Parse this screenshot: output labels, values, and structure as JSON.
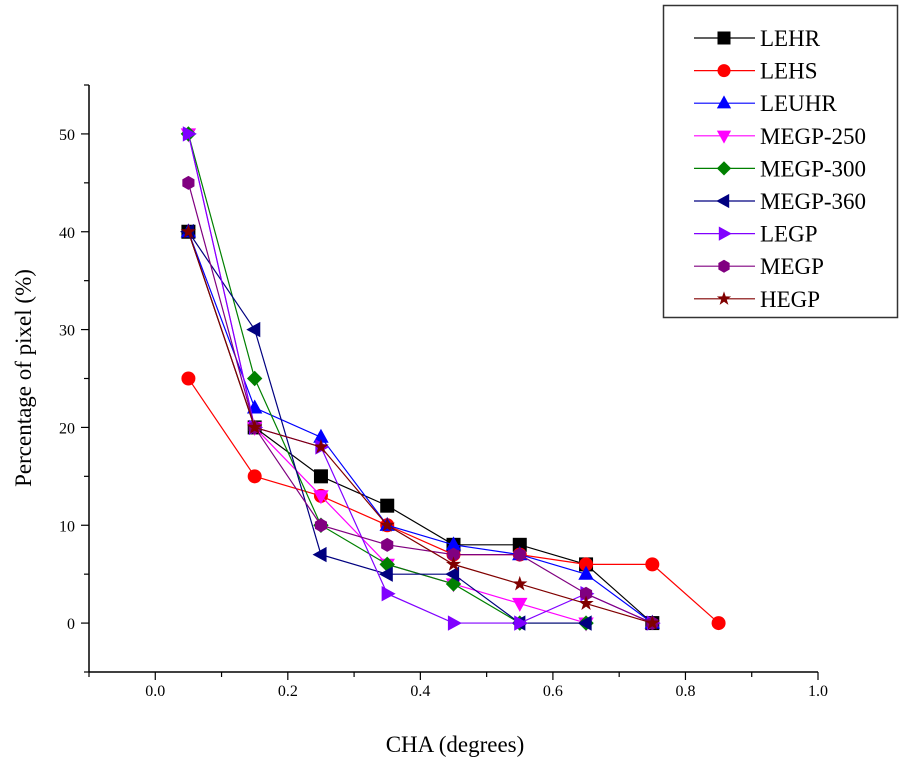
{
  "chart_data": {
    "type": "line",
    "title": "",
    "xlabel": "CHA (degrees)",
    "ylabel": "Percentage of pixel (%)",
    "xlim": [
      -0.1,
      1.0
    ],
    "ylim": [
      -5,
      55
    ],
    "xticks": [
      "0.0",
      "0.2",
      "0.4",
      "0.6",
      "0.8",
      "1.0"
    ],
    "yticks": [
      "0",
      "10",
      "20",
      "30",
      "40",
      "50"
    ],
    "grid": false,
    "legend_position": "top-right",
    "series": [
      {
        "name": "LEHR",
        "color": "#000000",
        "marker": "square",
        "x": [
          0.05,
          0.15,
          0.25,
          0.35,
          0.45,
          0.55,
          0.65,
          0.75
        ],
        "y": [
          40,
          20,
          15,
          12,
          8,
          8,
          6,
          0
        ]
      },
      {
        "name": "LEHS",
        "color": "#ff0000",
        "marker": "circle",
        "x": [
          0.05,
          0.15,
          0.25,
          0.35,
          0.45,
          0.55,
          0.65,
          0.75,
          0.85
        ],
        "y": [
          25,
          15,
          13,
          10,
          7,
          7,
          6,
          6,
          0
        ]
      },
      {
        "name": "LEUHR",
        "color": "#0000ff",
        "marker": "triangle-up",
        "x": [
          0.05,
          0.15,
          0.25,
          0.35,
          0.45,
          0.55,
          0.65,
          0.75
        ],
        "y": [
          40,
          22,
          19,
          10,
          8,
          7,
          5,
          0
        ]
      },
      {
        "name": "MEGP-250",
        "color": "#ff00ff",
        "marker": "triangle-down",
        "x": [
          0.05,
          0.15,
          0.25,
          0.35,
          0.45,
          0.55,
          0.65
        ],
        "y": [
          50,
          20,
          13,
          6,
          4,
          2,
          0
        ]
      },
      {
        "name": "MEGP-300",
        "color": "#008000",
        "marker": "diamond",
        "x": [
          0.05,
          0.15,
          0.25,
          0.35,
          0.45,
          0.55,
          0.65
        ],
        "y": [
          50,
          25,
          10,
          6,
          4,
          0,
          0
        ]
      },
      {
        "name": "MEGP-360",
        "color": "#000080",
        "marker": "triangle-left",
        "x": [
          0.05,
          0.15,
          0.25,
          0.35,
          0.45,
          0.55,
          0.65
        ],
        "y": [
          40,
          30,
          7,
          5,
          5,
          0,
          0
        ]
      },
      {
        "name": "LEGP",
        "color": "#8000ff",
        "marker": "triangle-right",
        "x": [
          0.05,
          0.15,
          0.25,
          0.35,
          0.45,
          0.55,
          0.65,
          0.75
        ],
        "y": [
          50,
          20,
          18,
          3,
          0,
          0,
          3,
          0
        ]
      },
      {
        "name": "MEGP",
        "color": "#800080",
        "marker": "hexagon",
        "x": [
          0.05,
          0.15,
          0.25,
          0.35,
          0.45,
          0.55,
          0.65,
          0.75
        ],
        "y": [
          45,
          20,
          10,
          8,
          7,
          7,
          3,
          0
        ]
      },
      {
        "name": "HEGP",
        "color": "#800000",
        "marker": "star",
        "x": [
          0.05,
          0.15,
          0.25,
          0.35,
          0.45,
          0.55,
          0.65,
          0.75
        ],
        "y": [
          40,
          20,
          18,
          10,
          6,
          4,
          2,
          0
        ]
      }
    ]
  }
}
